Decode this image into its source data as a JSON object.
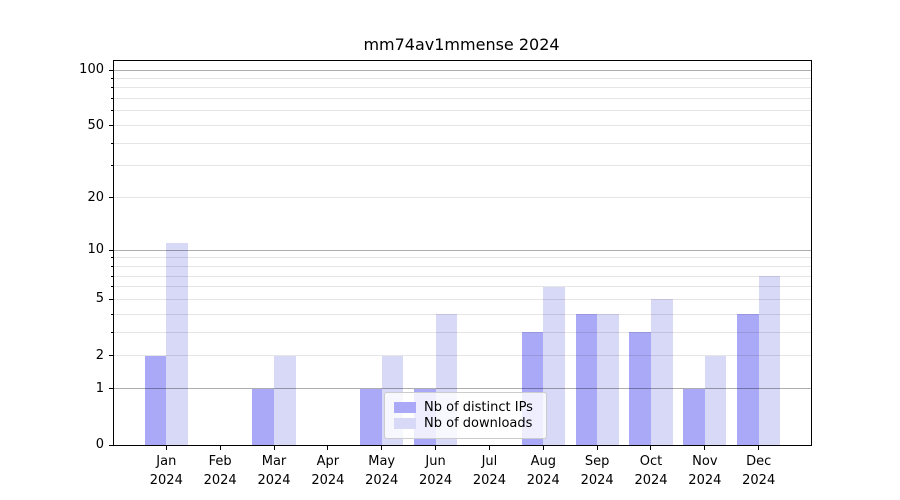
{
  "chart_data": {
    "type": "bar",
    "title": "mm74av1mmense 2024",
    "categories": [
      "Jan",
      "Feb",
      "Mar",
      "Apr",
      "May",
      "Jun",
      "Jul",
      "Aug",
      "Sep",
      "Oct",
      "Nov",
      "Dec"
    ],
    "year_label": "2024",
    "series": [
      {
        "name": "Nb of distinct IPs",
        "color": "#a9a9f8",
        "values": [
          2,
          0,
          1,
          0,
          1,
          1,
          0,
          3,
          4,
          3,
          1,
          4
        ]
      },
      {
        "name": "Nb of downloads",
        "color": "#d8d8f7",
        "values": [
          11,
          0,
          2,
          0,
          2,
          4,
          0,
          6,
          4,
          5,
          2,
          7
        ]
      }
    ],
    "xlabel": "",
    "ylabel": "",
    "yscale": "symlog-like (linear 0-1, log above)",
    "ylim": [
      0,
      110
    ],
    "yticks_labeled": [
      0,
      1,
      2,
      5,
      10,
      20,
      50,
      100
    ],
    "major_gridlines": [
      1,
      10,
      100
    ],
    "minor_gridlines": [
      2,
      3,
      4,
      5,
      6,
      7,
      8,
      9,
      20,
      30,
      40,
      50,
      60,
      70,
      80,
      90
    ],
    "grid": "on",
    "legend_position": "lower center (inside axes)",
    "colors": {
      "bar_distinct_ips": "#a9a9f8",
      "bar_downloads": "#d8d8f7",
      "major_grid": "rgba(0,0,0,0.32)",
      "minor_grid": "rgba(0,0,0,0.10)",
      "axis": "#000000",
      "background": "#ffffff"
    }
  }
}
